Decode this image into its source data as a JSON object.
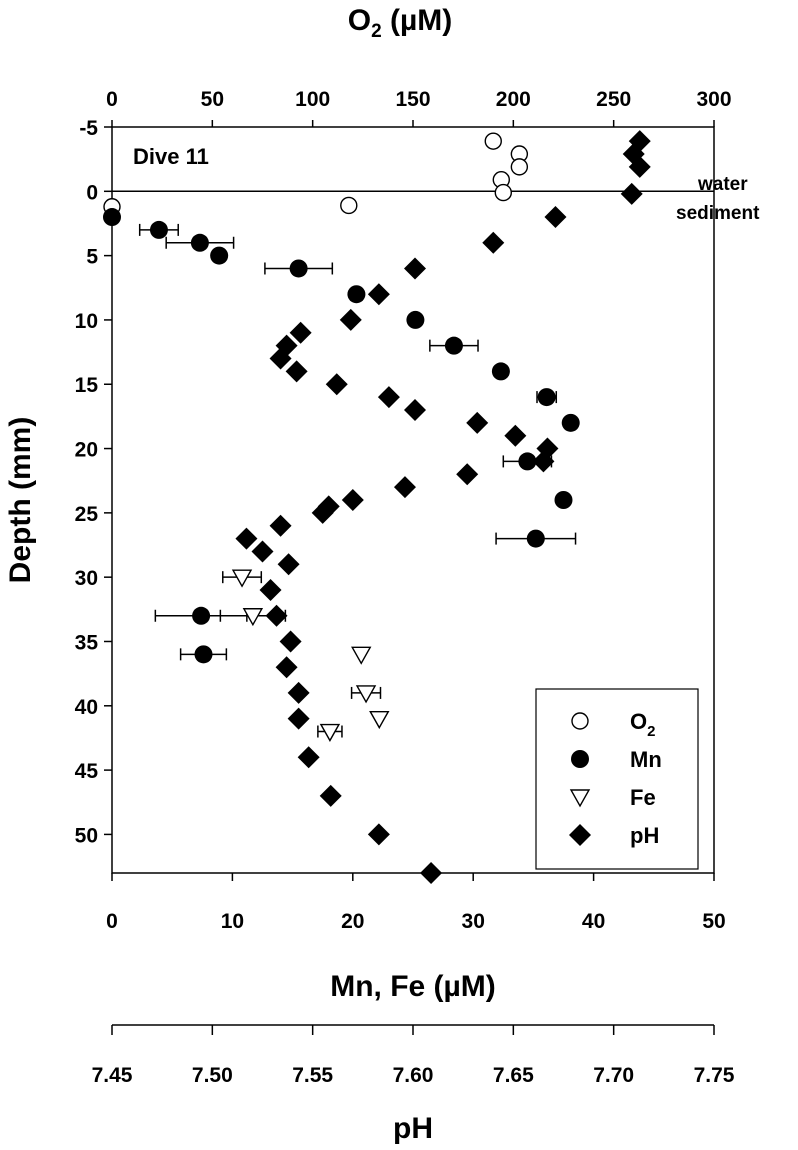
{
  "chart_data": {
    "type": "scatter",
    "panel_label": "Dive 11",
    "y_axis": {
      "title": "Depth (mm)",
      "range": [
        -5,
        53
      ],
      "ticks": [
        -5,
        0,
        5,
        10,
        15,
        20,
        25,
        30,
        35,
        40,
        45,
        50
      ],
      "inverted": true
    },
    "top_axis": {
      "title_main": "O",
      "title_sub": "2",
      "title_rest": " (µM)",
      "range": [
        0,
        300
      ],
      "ticks": [
        0,
        50,
        100,
        150,
        200,
        250,
        300
      ]
    },
    "bottom_axis": {
      "title": "Mn, Fe (µM)",
      "range": [
        0,
        50
      ],
      "ticks": [
        0,
        10,
        20,
        30,
        40,
        50
      ]
    },
    "ph_axis": {
      "title": "pH",
      "range": [
        7.45,
        7.75
      ],
      "ticks": [
        "7.45",
        "7.50",
        "7.55",
        "7.60",
        "7.65",
        "7.70",
        "7.75"
      ]
    },
    "interface": {
      "depth": 0,
      "label_above": "water",
      "label_below": "sediment"
    },
    "legend": {
      "position": "bottom-right",
      "items": [
        {
          "key": "O2",
          "main": "O",
          "sub": "2"
        },
        {
          "key": "Mn",
          "main": "Mn",
          "sub": ""
        },
        {
          "key": "Fe",
          "main": "Fe",
          "sub": ""
        },
        {
          "key": "pH",
          "main": "pH",
          "sub": ""
        }
      ]
    },
    "series": [
      {
        "name": "O2",
        "axis": "O2",
        "marker": "open-circle",
        "points": [
          {
            "depth": -3.9,
            "value": 190
          },
          {
            "depth": -2.9,
            "value": 203
          },
          {
            "depth": -1.9,
            "value": 203
          },
          {
            "depth": -0.9,
            "value": 194
          },
          {
            "depth": 0.1,
            "value": 195
          },
          {
            "depth": 1.1,
            "value": 118
          },
          {
            "depth": 1.2,
            "value": 0
          }
        ]
      },
      {
        "name": "Mn",
        "axis": "MnFe",
        "marker": "filled-circle",
        "points": [
          {
            "depth": 2,
            "value": 0
          },
          {
            "depth": 3,
            "value": 3.9,
            "err": 1.6
          },
          {
            "depth": 4,
            "value": 7.3,
            "err": 2.8
          },
          {
            "depth": 5,
            "value": 8.9
          },
          {
            "depth": 6,
            "value": 15.5,
            "err": 2.8
          },
          {
            "depth": 8,
            "value": 20.3
          },
          {
            "depth": 10,
            "value": 25.2
          },
          {
            "depth": 12,
            "value": 28.4,
            "err": 2
          },
          {
            "depth": 14,
            "value": 32.3
          },
          {
            "depth": 16,
            "value": 36.1,
            "err": 0.8
          },
          {
            "depth": 18,
            "value": 38.1
          },
          {
            "depth": 21,
            "value": 34.5,
            "err": 2
          },
          {
            "depth": 24,
            "value": 37.5
          },
          {
            "depth": 27,
            "value": 35.2,
            "err": 3.3
          },
          {
            "depth": 33,
            "value": 7.4,
            "err": 3.8
          },
          {
            "depth": 36,
            "value": 7.6,
            "err": 1.9
          }
        ]
      },
      {
        "name": "Fe",
        "axis": "MnFe",
        "marker": "open-triangle-down",
        "points": [
          {
            "depth": 30,
            "value": 10.8,
            "err": 1.6
          },
          {
            "depth": 33,
            "value": 11.7,
            "err": 2.7
          },
          {
            "depth": 36,
            "value": 20.7
          },
          {
            "depth": 39,
            "value": 21.1,
            "err": 1.2
          },
          {
            "depth": 41,
            "value": 22.2
          },
          {
            "depth": 42,
            "value": 18.1,
            "err": 1
          }
        ]
      },
      {
        "name": "pH",
        "axis": "pH",
        "marker": "filled-diamond",
        "points": [
          {
            "depth": -3.9,
            "value": 7.713
          },
          {
            "depth": -2.9,
            "value": 7.71
          },
          {
            "depth": -1.9,
            "value": 7.713
          },
          {
            "depth": 0.2,
            "value": 7.709
          },
          {
            "depth": 2,
            "value": 7.671
          },
          {
            "depth": 4,
            "value": 7.64
          },
          {
            "depth": 6,
            "value": 7.601
          },
          {
            "depth": 8,
            "value": 7.583
          },
          {
            "depth": 10,
            "value": 7.569
          },
          {
            "depth": 11,
            "value": 7.544
          },
          {
            "depth": 12,
            "value": 7.537
          },
          {
            "depth": 13,
            "value": 7.534
          },
          {
            "depth": 14,
            "value": 7.542
          },
          {
            "depth": 15,
            "value": 7.562
          },
          {
            "depth": 16,
            "value": 7.588
          },
          {
            "depth": 17,
            "value": 7.601
          },
          {
            "depth": 18,
            "value": 7.632
          },
          {
            "depth": 19,
            "value": 7.651
          },
          {
            "depth": 20,
            "value": 7.667
          },
          {
            "depth": 21,
            "value": 7.665
          },
          {
            "depth": 22,
            "value": 7.627
          },
          {
            "depth": 23,
            "value": 7.596
          },
          {
            "depth": 24.5,
            "value": 7.558
          },
          {
            "depth": 24,
            "value": 7.57
          },
          {
            "depth": 25,
            "value": 7.555
          },
          {
            "depth": 26,
            "value": 7.534
          },
          {
            "depth": 27,
            "value": 7.517
          },
          {
            "depth": 28,
            "value": 7.525
          },
          {
            "depth": 29,
            "value": 7.538
          },
          {
            "depth": 31,
            "value": 7.529
          },
          {
            "depth": 33,
            "value": 7.532
          },
          {
            "depth": 35,
            "value": 7.539
          },
          {
            "depth": 37,
            "value": 7.537
          },
          {
            "depth": 39,
            "value": 7.543
          },
          {
            "depth": 41,
            "value": 7.543
          },
          {
            "depth": 44,
            "value": 7.548
          },
          {
            "depth": 47,
            "value": 7.559
          },
          {
            "depth": 50,
            "value": 7.583
          },
          {
            "depth": 53,
            "value": 7.609
          }
        ]
      }
    ]
  }
}
